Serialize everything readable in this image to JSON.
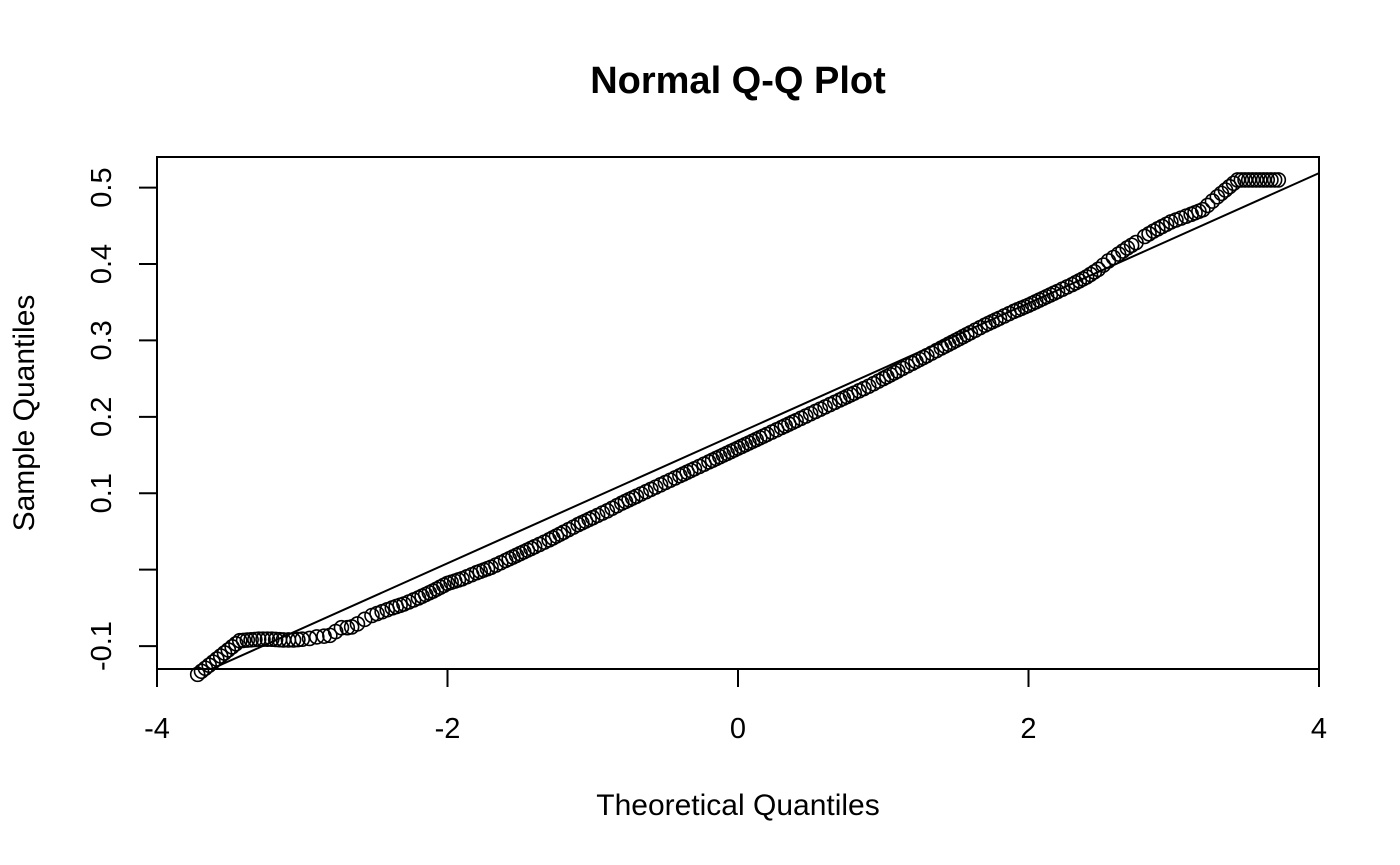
{
  "chart_data": {
    "type": "scatter",
    "title": "Normal Q-Q Plot",
    "xlabel": "Theoretical Quantiles",
    "ylabel": "Sample Quantiles",
    "xlim": [
      -4,
      4
    ],
    "ylim": [
      -0.13,
      0.54
    ],
    "x_ticks": [
      {
        "value": -4,
        "label": "-4"
      },
      {
        "value": -2,
        "label": "-2"
      },
      {
        "value": 0,
        "label": "0"
      },
      {
        "value": 2,
        "label": "2"
      },
      {
        "value": 4,
        "label": "4"
      }
    ],
    "y_ticks": [
      {
        "value": -0.1,
        "label": "-0.1"
      },
      {
        "value": 0.0,
        "label": ""
      },
      {
        "value": 0.1,
        "label": "0.1"
      },
      {
        "value": 0.2,
        "label": "0.2"
      },
      {
        "value": 0.3,
        "label": "0.3"
      },
      {
        "value": 0.4,
        "label": "0.4"
      },
      {
        "value": 0.5,
        "label": "0.5"
      }
    ],
    "reference_line": {
      "intercept": 0.1785,
      "slope": 0.0851
    },
    "series": [
      {
        "points": [
          [
            -3.72,
            -0.137
          ],
          [
            -3.43,
            -0.093
          ],
          [
            -3.3,
            -0.091
          ],
          [
            -3.21,
            -0.091
          ],
          [
            -3.13,
            -0.092
          ],
          [
            -3.06,
            -0.092
          ],
          [
            -3.0,
            -0.091
          ],
          [
            -2.95,
            -0.09
          ],
          [
            -2.9,
            -0.088
          ],
          [
            -2.85,
            -0.087
          ],
          [
            -2.81,
            -0.086
          ],
          [
            -2.77,
            -0.081
          ],
          [
            -2.73,
            -0.076
          ],
          [
            -2.69,
            -0.076
          ],
          [
            -2.66,
            -0.075
          ],
          [
            -2.62,
            -0.071
          ],
          [
            -2.57,
            -0.065
          ],
          [
            -2.52,
            -0.06
          ],
          [
            -2.45,
            -0.055
          ],
          [
            -2.38,
            -0.05
          ],
          [
            -2.3,
            -0.045
          ],
          [
            -2.2,
            -0.037
          ],
          [
            -2.1,
            -0.028
          ],
          [
            -2.0,
            -0.018
          ],
          [
            -1.9,
            -0.012
          ],
          [
            -1.8,
            -0.004
          ],
          [
            -1.7,
            0.003
          ],
          [
            -1.6,
            0.012
          ],
          [
            -1.5,
            0.021
          ],
          [
            -1.4,
            0.03
          ],
          [
            -1.3,
            0.039
          ],
          [
            -1.2,
            0.049
          ],
          [
            -1.1,
            0.059
          ],
          [
            -1.0,
            0.068
          ],
          [
            -0.9,
            0.077
          ],
          [
            -0.8,
            0.087
          ],
          [
            -0.7,
            0.096
          ],
          [
            -0.6,
            0.105
          ],
          [
            -0.5,
            0.114
          ],
          [
            -0.4,
            0.123
          ],
          [
            -0.3,
            0.132
          ],
          [
            -0.2,
            0.141
          ],
          [
            -0.1,
            0.15
          ],
          [
            0.0,
            0.159
          ],
          [
            0.1,
            0.168
          ],
          [
            0.2,
            0.177
          ],
          [
            0.3,
            0.186
          ],
          [
            0.4,
            0.195
          ],
          [
            0.5,
            0.204
          ],
          [
            0.6,
            0.213
          ],
          [
            0.7,
            0.222
          ],
          [
            0.8,
            0.231
          ],
          [
            0.9,
            0.24
          ],
          [
            1.0,
            0.25
          ],
          [
            1.1,
            0.26
          ],
          [
            1.2,
            0.27
          ],
          [
            1.3,
            0.28
          ],
          [
            1.4,
            0.29
          ],
          [
            1.5,
            0.3
          ],
          [
            1.6,
            0.31
          ],
          [
            1.7,
            0.32
          ],
          [
            1.8,
            0.329
          ],
          [
            1.9,
            0.338
          ],
          [
            2.0,
            0.346
          ],
          [
            2.1,
            0.355
          ],
          [
            2.2,
            0.364
          ],
          [
            2.3,
            0.373
          ],
          [
            2.4,
            0.383
          ],
          [
            2.48,
            0.393
          ],
          [
            2.55,
            0.404
          ],
          [
            2.62,
            0.413
          ],
          [
            2.68,
            0.421
          ],
          [
            2.74,
            0.428
          ],
          [
            2.8,
            0.436
          ],
          [
            2.86,
            0.443
          ],
          [
            2.92,
            0.449
          ],
          [
            2.98,
            0.455
          ],
          [
            3.05,
            0.46
          ],
          [
            3.12,
            0.465
          ],
          [
            3.2,
            0.471
          ],
          [
            3.3,
            0.488
          ],
          [
            3.44,
            0.51
          ],
          [
            3.72,
            0.51
          ]
        ]
      }
    ]
  }
}
